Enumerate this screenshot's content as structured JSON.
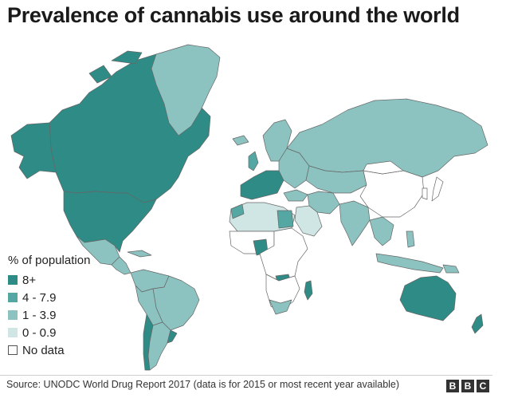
{
  "title": "Prevalence of cannabis use around the world",
  "legend": {
    "title": "% of population",
    "items": [
      {
        "label": "8+",
        "color": "#2e8b86"
      },
      {
        "label": "4 - 7.9",
        "color": "#55a7a3"
      },
      {
        "label": "1 - 3.9",
        "color": "#8cc3c1"
      },
      {
        "label": "0 - 0.9",
        "color": "#cfe6e5"
      },
      {
        "label": "No data",
        "color": "#ffffff"
      }
    ]
  },
  "colors": {
    "high": "#2e8b86",
    "mid": "#55a7a3",
    "low": "#8cc3c1",
    "verylow": "#cfe6e5",
    "nodata": "#ffffff",
    "border": "#666666"
  },
  "footer": {
    "source": "Source: UNODC World Drug Report 2017 (data is for 2015 or most recent year available)",
    "logo": [
      "B",
      "B",
      "C"
    ]
  }
}
